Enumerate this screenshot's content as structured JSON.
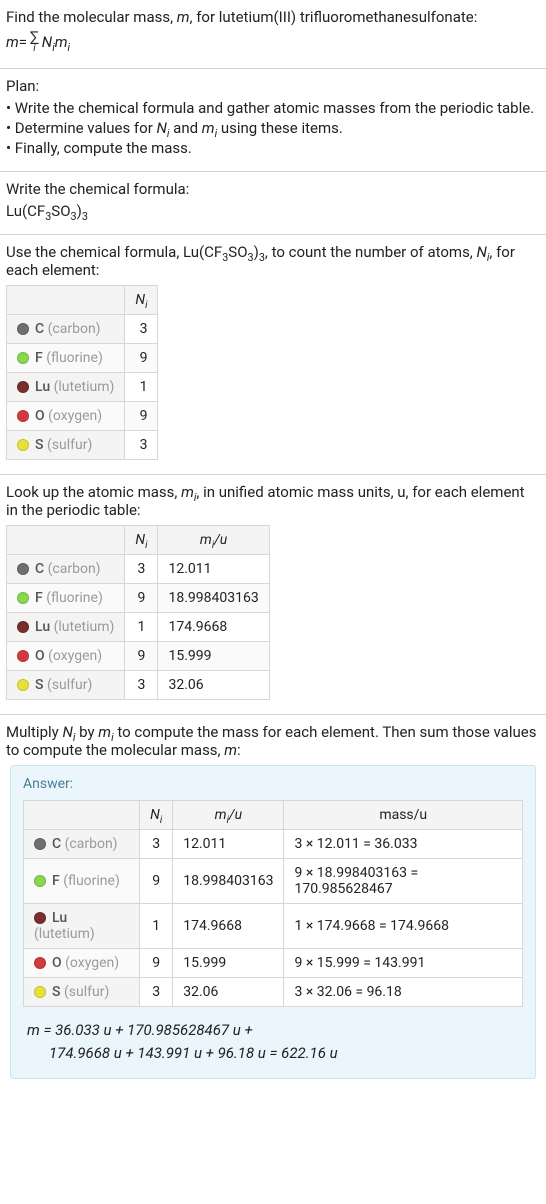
{
  "header": {
    "prompt_prefix": "Find the molecular mass, ",
    "prompt_var": "m",
    "prompt_suffix": ", for lutetium(III) trifluoromethanesulfonate:",
    "eq_lhs": "m",
    "eq_eqsign": " = ",
    "sum_index": "i",
    "eq_rhs_N": "N",
    "eq_rhs_m": "m",
    "eq_rhs_i": "i"
  },
  "plan": {
    "title": "Plan:",
    "b1_pre": "• Write the chemical formula and gather atomic masses from the periodic table.",
    "b2_pre": "• Determine values for ",
    "b2_n": "N",
    "b2_i1": "i",
    "b2_mid": " and ",
    "b2_m": "m",
    "b2_i2": "i",
    "b2_post": " using these items.",
    "b3": "• Finally, compute the mass."
  },
  "formula_section": {
    "title": "Write the chemical formula:",
    "formula_base": "Lu(CF",
    "formula_s1": "3",
    "formula_mid": "SO",
    "formula_s2": "3",
    "formula_close": ")",
    "formula_s3": "3"
  },
  "count_section": {
    "text_pre": "Use the chemical formula, Lu(CF",
    "s1": "3",
    "mid1": "SO",
    "s2": "3",
    "close": ")",
    "s3": "3",
    "text_mid": ", to count the number of atoms, ",
    "var_N": "N",
    "var_i": "i",
    "text_post": ", for each element:",
    "col_N": "N",
    "col_i": "i"
  },
  "mass_lookup": {
    "text_pre": "Look up the atomic mass, ",
    "var_m": "m",
    "var_i": "i",
    "text_mid": ", in unified atomic mass units, u, for each element in the periodic table:",
    "col_N": "N",
    "col_Ni": "i",
    "col_m": "m",
    "col_mi": "i",
    "col_m_unit": "/u"
  },
  "multiply_section": {
    "text_pre": "Multiply ",
    "N": "N",
    "Ni": "i",
    "by": " by ",
    "m": "m",
    "mi": "i",
    "text_mid": " to compute the mass for each element. Then sum those values to compute the molecular mass, ",
    "mvar": "m",
    "text_post": ":"
  },
  "elements": [
    {
      "sym": "C",
      "name": "(carbon)",
      "dot": "#6f6f6f",
      "N": "3",
      "mu": "12.011",
      "mass": "3 × 12.011 = 36.033"
    },
    {
      "sym": "F",
      "name": "(fluorine)",
      "dot": "#86d94d",
      "N": "9",
      "mu": "18.998403163",
      "mass": "9 × 18.998403163 = 170.985628467"
    },
    {
      "sym": "Lu",
      "name": "(lutetium)",
      "dot": "#7a2d2d",
      "N": "1",
      "mu": "174.9668",
      "mass": "1 × 174.9668 = 174.9668"
    },
    {
      "sym": "O",
      "name": "(oxygen)",
      "dot": "#d23b3b",
      "N": "9",
      "mu": "15.999",
      "mass": "9 × 15.999 = 143.991"
    },
    {
      "sym": "S",
      "name": "(sulfur)",
      "dot": "#e7e23a",
      "N": "3",
      "mu": "32.06",
      "mass": "3 × 32.06 = 96.18"
    }
  ],
  "answer": {
    "label": "Answer:",
    "col_N": "N",
    "col_Ni": "i",
    "col_m": "m",
    "col_mi": "i",
    "col_m_unit": "/u",
    "col_mass": "mass/u",
    "sum_line1": "m = 36.033 u + 170.985628467 u +",
    "sum_line2": "174.9668 u + 143.991 u + 96.18 u = 622.16 u"
  }
}
